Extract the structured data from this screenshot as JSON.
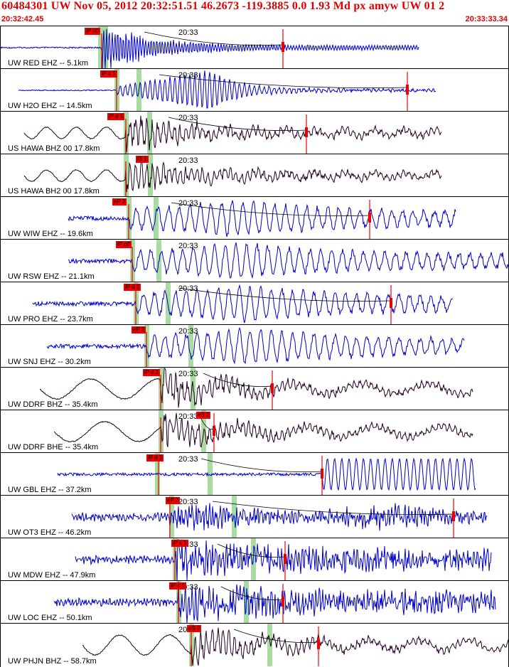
{
  "header": {
    "title": "60484301 UW Nov 05, 2012 20:32:51.51   46.2673 -119.3885  0.0 1.93 Md px amyw UW 01   2",
    "start_time": "20:32:42.45",
    "end_time": "20:33:33.34"
  },
  "colors": {
    "header_text": "#e00000",
    "trace_blue": "#0000cc",
    "trace_dark": "#220022",
    "pick_red": "#ee0000",
    "green_marker": "#a8dca0"
  },
  "minute_label": "20:33",
  "stations": [
    {
      "label": "UW RED EHZ -- 5.1km",
      "pick": "iP c0",
      "color": "blue"
    },
    {
      "label": "UW H2O EHZ -- 14.5km",
      "pick": "iP c 1",
      "color": "blue"
    },
    {
      "label": "US HAWA BHZ 00 17.8km",
      "pick": "iP d 1",
      "color": "dark"
    },
    {
      "label": "US HAWA BH2 00 17.8km",
      "pick": "iS 1",
      "color": "dark"
    },
    {
      "label": "UW WIW EHZ -- 19.6km",
      "pick": "eP 2",
      "color": "blue"
    },
    {
      "label": "UW RSW EHZ -- 21.1km",
      "pick": "iP c0",
      "color": "blue"
    },
    {
      "label": "UW PRO EHZ -- 23.7km",
      "pick": "iP d 1",
      "color": "blue"
    },
    {
      "label": "UW SNJ EHZ -- 30.2km",
      "pick": "eP 2",
      "color": "blue"
    },
    {
      "label": "UW DDRF BHZ -- 35.4km",
      "pick": "iP d 1",
      "color": "dark"
    },
    {
      "label": "UW DDRF BHE -- 35.4km",
      "pick": "eS 2",
      "color": "dark"
    },
    {
      "label": "UW GBL EHZ -- 37.2km",
      "pick": "iP d 1",
      "color": "blue"
    },
    {
      "label": "UW OT3 EHZ -- 46.2km",
      "pick": "eP 2",
      "color": "blue"
    },
    {
      "label": "UW MDW EHZ -- 47.9km",
      "pick": "iP c 1",
      "color": "blue"
    },
    {
      "label": "UW LOC EHZ -- 50.1km",
      "pick": "iP c 1",
      "color": "blue"
    },
    {
      "label": "UW PHJN BHZ -- 58.7km",
      "pick": "eS 2",
      "color": "dark"
    }
  ]
}
